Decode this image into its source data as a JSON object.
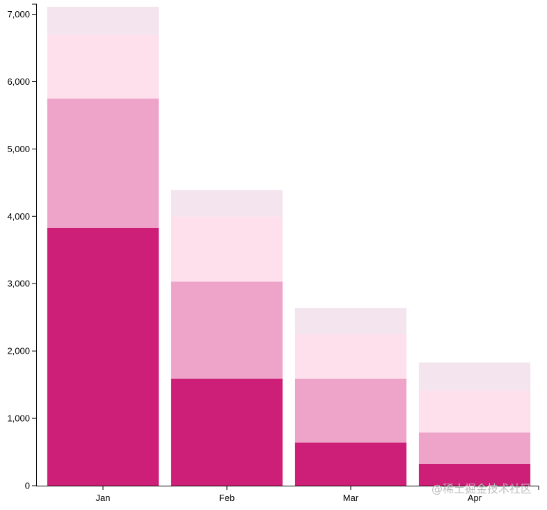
{
  "chart_data": {
    "type": "bar",
    "stacked": true,
    "categories": [
      "Jan",
      "Feb",
      "Mar",
      "Apr"
    ],
    "series": [
      {
        "values": [
          3830,
          1590,
          640,
          320
        ],
        "color": "#ce1f78"
      },
      {
        "values": [
          1920,
          1440,
          950,
          470
        ],
        "color": "#eea3c8"
      },
      {
        "values": [
          950,
          970,
          660,
          620
        ],
        "color": "#fde0ec"
      },
      {
        "values": [
          410,
          390,
          390,
          420
        ],
        "color": "#f3e4ee"
      }
    ],
    "y_ticks": [
      0,
      1000,
      2000,
      3000,
      4000,
      5000,
      6000,
      7000
    ],
    "y_tick_labels": [
      "0",
      "1,000",
      "2,000",
      "3,000",
      "4,000",
      "5,000",
      "6,000",
      "7,000"
    ],
    "ylim": [
      0,
      7150
    ],
    "grid": false,
    "legend": "none"
  },
  "watermark": "@稀土掘金技术社区"
}
